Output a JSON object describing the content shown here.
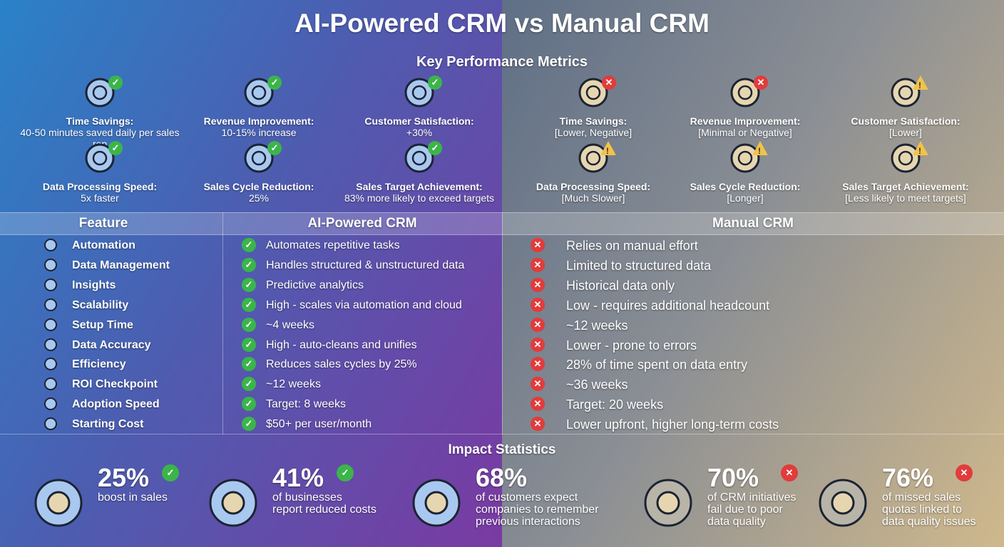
{
  "title": "AI-Powered CRM vs Manual CRM",
  "metrics_title": "Key Performance Metrics",
  "colors": {
    "check": "#3bb54a",
    "cross": "#e23b3b",
    "warning": "#f2c24a",
    "ai_icon": "#a9c8f0",
    "manual_icon": "#e6d6b0"
  },
  "ai_metrics": [
    {
      "label": "Time Savings:",
      "value": "40-50 minutes saved daily per sales rep",
      "icon": "clock-up-icon",
      "status": "check"
    },
    {
      "label": "Revenue Improvement:",
      "value": "10-15% increase",
      "icon": "chart-up-icon",
      "status": "check"
    },
    {
      "label": "Customer Satisfaction:",
      "value": "+30%",
      "icon": "smiley-icon",
      "status": "check"
    },
    {
      "label": "Data Processing Speed:",
      "value": "5x faster",
      "icon": "lightning-network-icon",
      "status": "check"
    },
    {
      "label": "Sales Cycle Reduction:",
      "value": "25%",
      "icon": "cycle-icon",
      "status": "check"
    },
    {
      "label": "Sales Target Achievement:",
      "value": "83% more likely to exceed targets",
      "icon": "target-icon",
      "status": "check"
    }
  ],
  "manual_metrics": [
    {
      "label": "Time Savings:",
      "value": "[Lower, Negative]",
      "icon": "clock-down-icon",
      "status": "cross"
    },
    {
      "label": "Revenue Improvement:",
      "value": "[Minimal or Negative]",
      "icon": "chart-down-icon",
      "status": "cross"
    },
    {
      "label": "Customer Satisfaction:",
      "value": "[Lower]",
      "icon": "sad-face-icon",
      "status": "warning"
    },
    {
      "label": "Data Processing Speed:",
      "value": "[Much Slower]",
      "icon": "snail-icon",
      "status": "warning"
    },
    {
      "label": "Sales Cycle Reduction:",
      "value": "[Longer]",
      "icon": "cycle-icon",
      "status": "warning"
    },
    {
      "label": "Sales Target Achievement:",
      "value": "[Less likely to meet targets]",
      "icon": "target-icon",
      "status": "warning"
    }
  ],
  "table": {
    "headers": [
      "Feature",
      "AI-Powered CRM",
      "Manual CRM"
    ],
    "rows": [
      {
        "feature": "Automation",
        "ai": "Automates repetitive tasks",
        "manual": "Relies on manual effort"
      },
      {
        "feature": "Data Management",
        "ai": "Handles structured & unstructured data",
        "manual": "Limited to structured data"
      },
      {
        "feature": "Insights",
        "ai": "Predictive analytics",
        "manual": "Historical data only"
      },
      {
        "feature": "Scalability",
        "ai": "High - scales via automation and cloud",
        "manual": "Low - requires additional headcount"
      },
      {
        "feature": "Setup Time",
        "ai": "~4 weeks",
        "manual": "~12 weeks"
      },
      {
        "feature": "Data Accuracy",
        "ai": "High - auto-cleans and unifies",
        "manual": "Lower - prone to errors"
      },
      {
        "feature": "Efficiency",
        "ai": "Reduces sales cycles by 25%",
        "manual": "28% of time spent on data entry"
      },
      {
        "feature": "ROI Checkpoint",
        "ai": "~12 weeks",
        "manual": "~36 weeks"
      },
      {
        "feature": "Adoption Speed",
        "ai": "Target: 8 weeks",
        "manual": "Target: 20 weeks"
      },
      {
        "feature": "Starting Cost",
        "ai": "$50+ per user/month",
        "manual": "Lower upfront, higher long-term costs"
      }
    ]
  },
  "impact_title": "Impact Statistics",
  "stats": [
    {
      "value": "25%",
      "desc": [
        "boost in sales"
      ],
      "icon": "dollar-arrow-up-icon",
      "status": "check"
    },
    {
      "value": "41%",
      "desc": [
        "of businesses",
        "report reduced costs"
      ],
      "icon": "coins-down-icon",
      "status": "check"
    },
    {
      "value": "68%",
      "desc": [
        "of customers expect",
        "companies to remember",
        "previous interactions"
      ],
      "icon": "conversation-icon",
      "status": "none"
    },
    {
      "value": "70%",
      "desc": [
        "of CRM initiatives",
        "fail due to poor",
        "data quality"
      ],
      "icon": "broken-chain-icon",
      "status": "cross"
    },
    {
      "value": "76%",
      "desc": [
        "of missed sales",
        "quotas linked to",
        "data quality issues"
      ],
      "icon": "crossed-target-icon",
      "status": "cross"
    }
  ]
}
